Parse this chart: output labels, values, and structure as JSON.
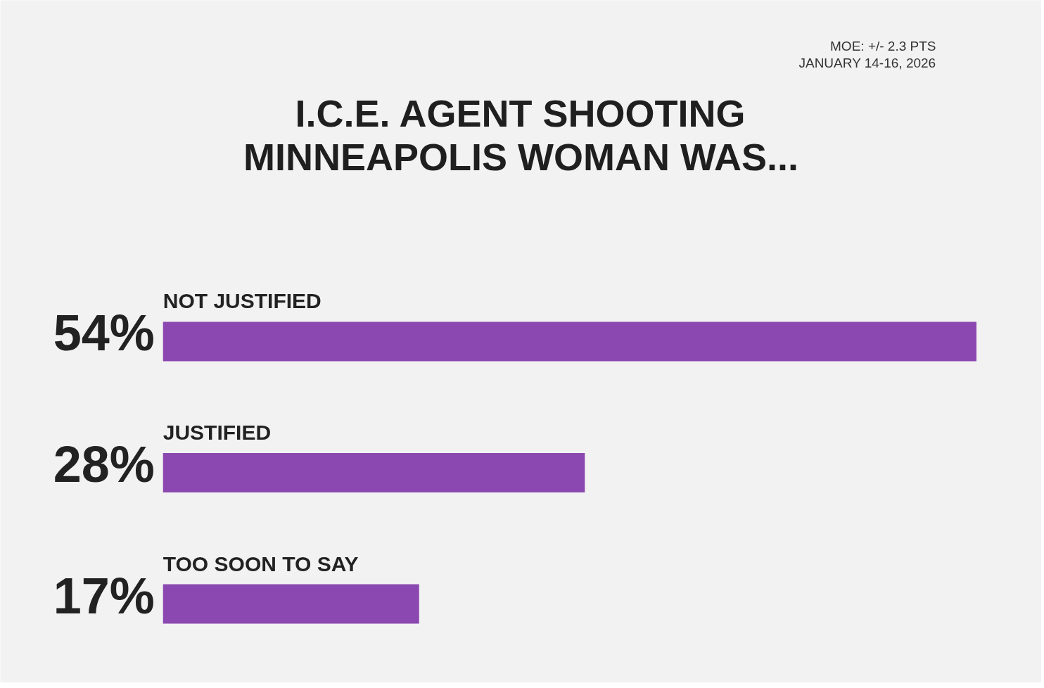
{
  "chart_data": {
    "type": "bar",
    "orientation": "horizontal",
    "title": "I.C.E. AGENT SHOOTING\nMINNEAPOLIS WOMAN WAS...",
    "annotations": [
      "MOE: +/- 2.3 PTS",
      "JANUARY 14-16, 2026"
    ],
    "categories": [
      "NOT JUSTIFIED",
      "JUSTIFIED",
      "TOO SOON TO SAY"
    ],
    "values": [
      54,
      28,
      17
    ],
    "value_labels": [
      "54%",
      "28%",
      "17%"
    ],
    "color": "#8b48b0"
  }
}
